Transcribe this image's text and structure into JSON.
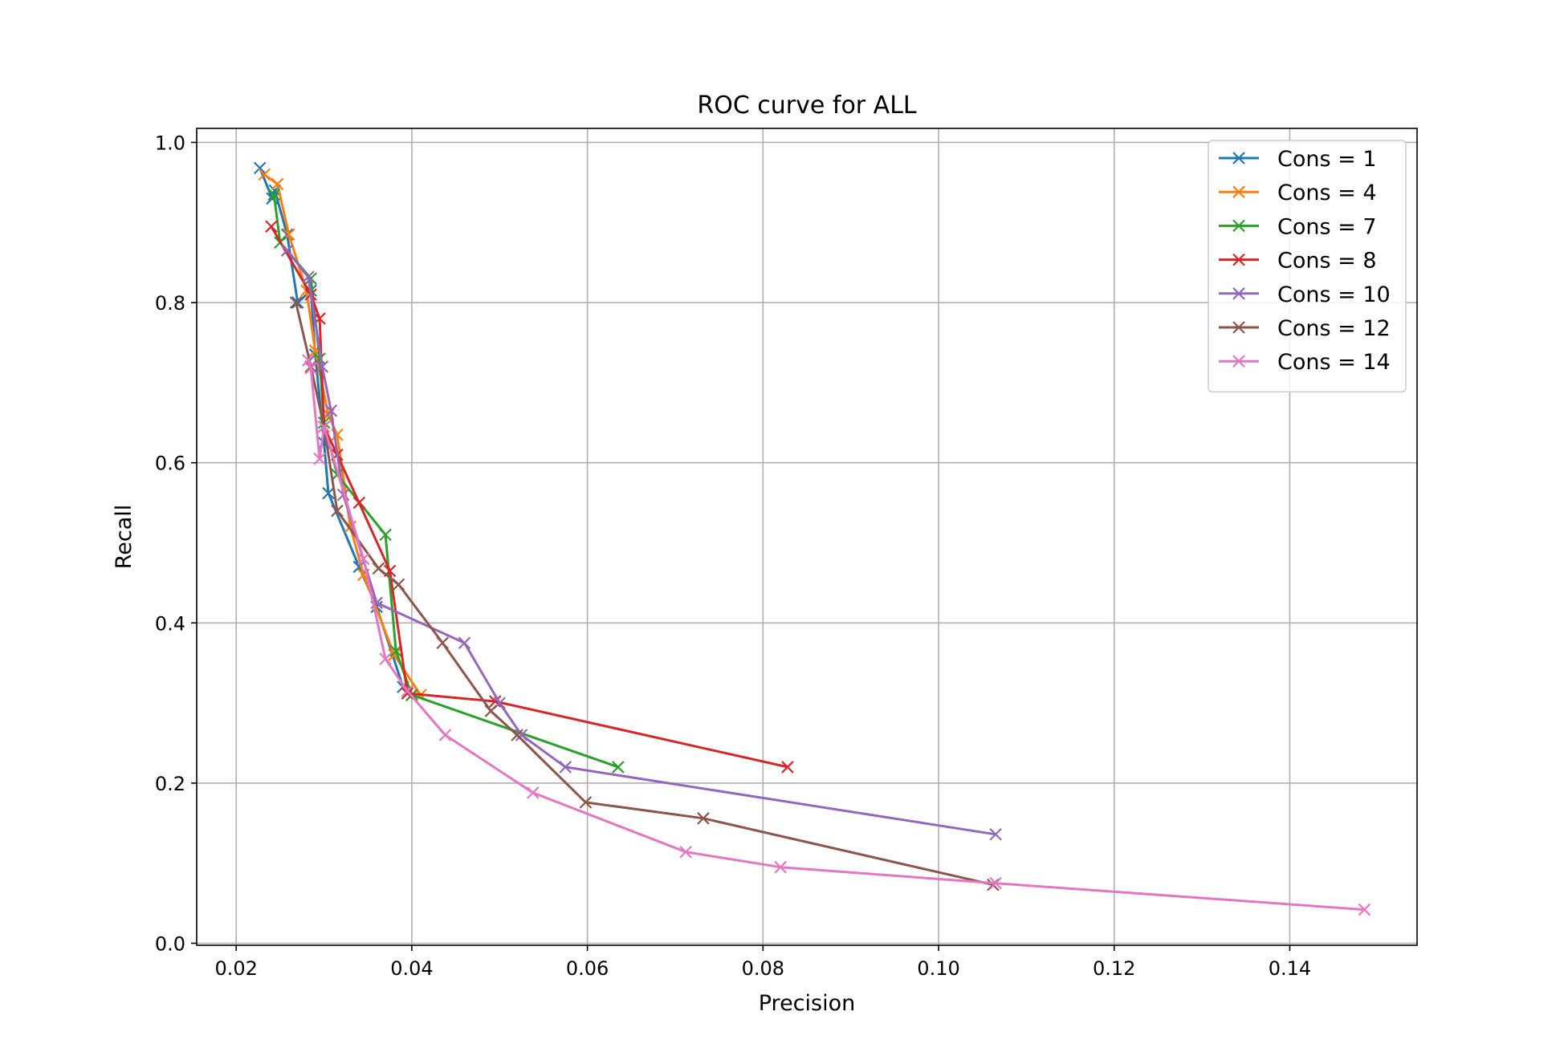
{
  "chart_data": {
    "type": "line",
    "title": "ROC curve for ALL",
    "xlabel": "Precision",
    "ylabel": "Recall",
    "xlim": [
      0.0155,
      0.1545
    ],
    "ylim": [
      -0.0025,
      1.0175
    ],
    "xticks": [
      0.02,
      0.04,
      0.06,
      0.08,
      0.1,
      0.12,
      0.14
    ],
    "xtick_labels": [
      "0.02",
      "0.04",
      "0.06",
      "0.08",
      "0.10",
      "0.12",
      "0.14"
    ],
    "yticks": [
      0.0,
      0.2,
      0.4,
      0.6,
      0.8,
      1.0
    ],
    "ytick_labels": [
      "0.0",
      "0.2",
      "0.4",
      "0.6",
      "0.8",
      "1.0"
    ],
    "grid": true,
    "legend_position": "top-right",
    "marker": "x",
    "series": [
      {
        "name": "Cons = 1",
        "color": "#1f77b4",
        "points": [
          [
            0.0227,
            0.968
          ],
          [
            0.0241,
            0.93
          ],
          [
            0.0244,
            0.94
          ],
          [
            0.0258,
            0.885
          ],
          [
            0.027,
            0.8
          ],
          [
            0.0285,
            0.815
          ],
          [
            0.029,
            0.735
          ],
          [
            0.03,
            0.625
          ],
          [
            0.0305,
            0.562
          ],
          [
            0.034,
            0.47
          ],
          [
            0.036,
            0.42
          ],
          [
            0.039,
            0.32
          ],
          [
            0.04,
            0.31
          ]
        ]
      },
      {
        "name": "Cons = 4",
        "color": "#ff7f0e",
        "points": [
          [
            0.0232,
            0.96
          ],
          [
            0.0247,
            0.948
          ],
          [
            0.026,
            0.885
          ],
          [
            0.028,
            0.815
          ],
          [
            0.029,
            0.74
          ],
          [
            0.0305,
            0.66
          ],
          [
            0.0315,
            0.635
          ],
          [
            0.033,
            0.52
          ],
          [
            0.0345,
            0.46
          ],
          [
            0.038,
            0.36
          ],
          [
            0.041,
            0.31
          ]
        ]
      },
      {
        "name": "Cons = 7",
        "color": "#2ca02c",
        "points": [
          [
            0.0243,
            0.935
          ],
          [
            0.025,
            0.875
          ],
          [
            0.0285,
            0.83
          ],
          [
            0.0295,
            0.73
          ],
          [
            0.03,
            0.65
          ],
          [
            0.0315,
            0.585
          ],
          [
            0.037,
            0.51
          ],
          [
            0.0382,
            0.365
          ],
          [
            0.04,
            0.31
          ],
          [
            0.0635,
            0.22
          ]
        ]
      },
      {
        "name": "Cons = 8",
        "color": "#d62728",
        "points": [
          [
            0.024,
            0.895
          ],
          [
            0.0285,
            0.81
          ],
          [
            0.0295,
            0.78
          ],
          [
            0.03,
            0.645
          ],
          [
            0.0315,
            0.61
          ],
          [
            0.034,
            0.55
          ],
          [
            0.0375,
            0.465
          ],
          [
            0.0395,
            0.312
          ],
          [
            0.0495,
            0.302
          ],
          [
            0.0828,
            0.22
          ]
        ]
      },
      {
        "name": "Cons = 10",
        "color": "#9467bd",
        "points": [
          [
            0.0258,
            0.865
          ],
          [
            0.0282,
            0.832
          ],
          [
            0.0298,
            0.72
          ],
          [
            0.0308,
            0.665
          ],
          [
            0.0322,
            0.56
          ],
          [
            0.036,
            0.425
          ],
          [
            0.046,
            0.375
          ],
          [
            0.05,
            0.3
          ],
          [
            0.0525,
            0.26
          ],
          [
            0.0575,
            0.22
          ],
          [
            0.1065,
            0.136
          ]
        ]
      },
      {
        "name": "Cons = 12",
        "color": "#8c564b",
        "points": [
          [
            0.0268,
            0.8
          ],
          [
            0.0285,
            0.72
          ],
          [
            0.03,
            0.645
          ],
          [
            0.0315,
            0.54
          ],
          [
            0.0362,
            0.468
          ],
          [
            0.0385,
            0.448
          ],
          [
            0.0435,
            0.375
          ],
          [
            0.049,
            0.29
          ],
          [
            0.052,
            0.26
          ],
          [
            0.0598,
            0.176
          ],
          [
            0.0732,
            0.156
          ],
          [
            0.1062,
            0.073
          ]
        ]
      },
      {
        "name": "Cons = 14",
        "color": "#e377c2",
        "points": [
          [
            0.0282,
            0.728
          ],
          [
            0.0285,
            0.718
          ],
          [
            0.0295,
            0.605
          ],
          [
            0.03,
            0.645
          ],
          [
            0.0345,
            0.48
          ],
          [
            0.037,
            0.355
          ],
          [
            0.0395,
            0.315
          ],
          [
            0.0438,
            0.26
          ],
          [
            0.0538,
            0.188
          ],
          [
            0.0712,
            0.114
          ],
          [
            0.082,
            0.095
          ],
          [
            0.1065,
            0.075
          ],
          [
            0.1485,
            0.042
          ]
        ]
      }
    ]
  }
}
